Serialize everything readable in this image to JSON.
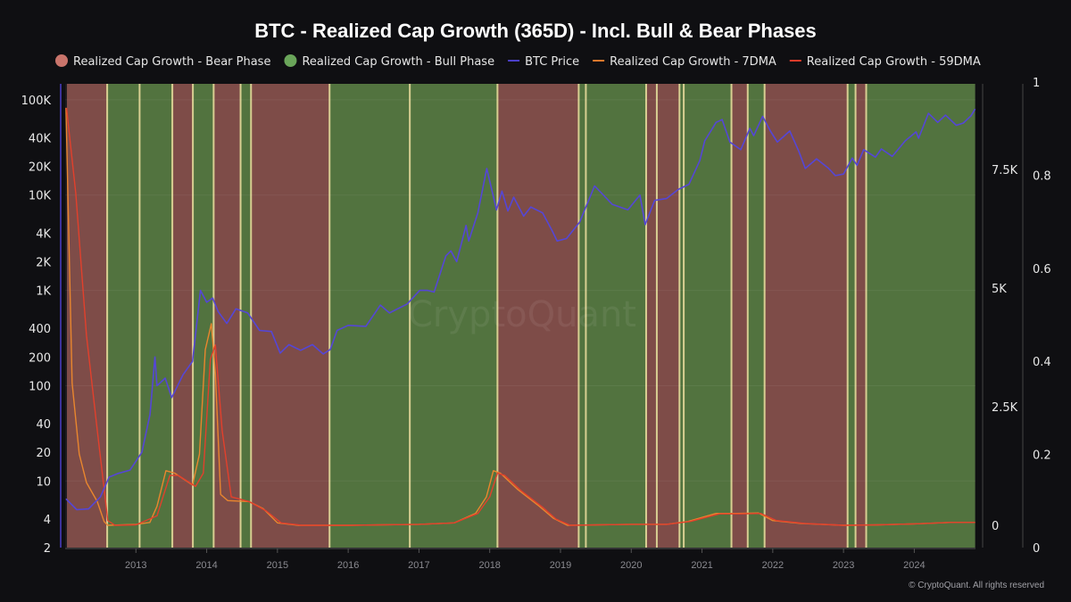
{
  "chart_data": {
    "type": "line",
    "title": "BTC - Realized Cap Growth (365D) - Incl. Bull & Bear Phases",
    "watermark": "CryptoQuant",
    "copyright": "© CryptoQuant. All rights reserved",
    "legend_position": "top",
    "legend": [
      {
        "label": "Realized Cap Growth - Bear Phase",
        "marker": "circle",
        "color": "#c9746b"
      },
      {
        "label": "Realized Cap Growth - Bull Phase",
        "marker": "circle",
        "color": "#6aa55a"
      },
      {
        "label": "BTC Price",
        "marker": "line",
        "color": "#4b3fc8"
      },
      {
        "label": "Realized Cap Growth - 7DMA",
        "marker": "line",
        "color": "#e0782c"
      },
      {
        "label": "Realized Cap Growth - 59DMA",
        "marker": "line",
        "color": "#e23b2a"
      }
    ],
    "colors": {
      "bear": "#7e4c48",
      "bull": "#52733f",
      "separator": "#d8cf92",
      "btc": "#5546d6",
      "dma7": "#e9862e",
      "dma59": "#e2402c",
      "background": "#0f0f12"
    },
    "xlim": [
      "2012-01-01",
      "2024-11-12"
    ],
    "x_ticks": [
      "2013",
      "2014",
      "2015",
      "2016",
      "2017",
      "2018",
      "2019",
      "2020",
      "2021",
      "2022",
      "2023",
      "2024"
    ],
    "grid": true,
    "axes": {
      "price": {
        "scale": "log",
        "ylim": [
          2,
          147000
        ],
        "ticks": [
          {
            "v": 100000,
            "label": "100K"
          },
          {
            "v": 40000,
            "label": "40K"
          },
          {
            "v": 20000,
            "label": "20K"
          },
          {
            "v": 10000,
            "label": "10K"
          },
          {
            "v": 4000,
            "label": "4K"
          },
          {
            "v": 2000,
            "label": "2K"
          },
          {
            "v": 1000,
            "label": "1K"
          },
          {
            "v": 400,
            "label": "400"
          },
          {
            "v": 200,
            "label": "200"
          },
          {
            "v": 100,
            "label": "100"
          },
          {
            "v": 40,
            "label": "40"
          },
          {
            "v": 20,
            "label": "20"
          },
          {
            "v": 10,
            "label": "10"
          },
          {
            "v": 4,
            "label": "4"
          },
          {
            "v": 2,
            "label": "2"
          }
        ]
      },
      "growth": {
        "scale": "linear",
        "ylim": [
          -470,
          9305
        ],
        "ticks": [
          {
            "v": 0,
            "label": "0"
          },
          {
            "v": 2500,
            "label": "2.5K"
          },
          {
            "v": 5000,
            "label": "5K"
          },
          {
            "v": 7500,
            "label": "7.5K"
          }
        ]
      },
      "phase": {
        "scale": "linear",
        "ylim": [
          0,
          1
        ],
        "ticks": [
          {
            "v": 0,
            "label": "0"
          },
          {
            "v": 0.2,
            "label": "0.2"
          },
          {
            "v": 0.4,
            "label": "0.4"
          },
          {
            "v": 0.6,
            "label": "0.6"
          },
          {
            "v": 0.8,
            "label": "0.8"
          },
          {
            "v": 1,
            "label": "1"
          }
        ]
      }
    },
    "phases": [
      {
        "phase": "bear",
        "start": "2012-01-10",
        "end": "2012-08-05"
      },
      {
        "phase": "bull",
        "start": "2012-08-05",
        "end": "2013-01-20"
      },
      {
        "phase": "bull",
        "start": "2013-01-20",
        "end": "2013-07-08"
      },
      {
        "phase": "bear",
        "start": "2013-07-08",
        "end": "2013-10-22"
      },
      {
        "phase": "bull",
        "start": "2013-10-22",
        "end": "2014-02-06"
      },
      {
        "phase": "bear",
        "start": "2014-02-06",
        "end": "2014-06-25"
      },
      {
        "phase": "bull",
        "start": "2014-06-25",
        "end": "2014-08-18"
      },
      {
        "phase": "bear",
        "start": "2014-08-18",
        "end": "2015-09-27"
      },
      {
        "phase": "bull",
        "start": "2015-09-27",
        "end": "2016-11-14"
      },
      {
        "phase": "bull",
        "start": "2016-11-14",
        "end": "2018-02-10"
      },
      {
        "phase": "bear",
        "start": "2018-02-10",
        "end": "2019-04-05"
      },
      {
        "phase": "bull",
        "start": "2019-04-05",
        "end": "2019-05-12"
      },
      {
        "phase": "bull",
        "start": "2019-05-12",
        "end": "2020-03-18"
      },
      {
        "phase": "bear",
        "start": "2020-03-18",
        "end": "2020-05-12"
      },
      {
        "phase": "bear",
        "start": "2020-05-12",
        "end": "2020-09-06"
      },
      {
        "phase": "bull",
        "start": "2020-09-06",
        "end": "2020-09-28"
      },
      {
        "phase": "bull",
        "start": "2020-09-28",
        "end": "2021-06-02"
      },
      {
        "phase": "bear",
        "start": "2021-06-02",
        "end": "2021-08-25"
      },
      {
        "phase": "bull",
        "start": "2021-08-25",
        "end": "2021-11-20"
      },
      {
        "phase": "bear",
        "start": "2021-11-20",
        "end": "2023-01-22"
      },
      {
        "phase": "bull",
        "start": "2023-01-22",
        "end": "2023-03-04"
      },
      {
        "phase": "bear",
        "start": "2023-03-04",
        "end": "2023-04-28"
      },
      {
        "phase": "bull",
        "start": "2023-04-28",
        "end": "2024-11-10"
      }
    ],
    "series": [
      {
        "name": "BTC Price",
        "axis": "price",
        "points": [
          [
            "2012-01-05",
            6.5
          ],
          [
            "2012-03-01",
            5
          ],
          [
            "2012-05-01",
            5.1
          ],
          [
            "2012-07-01",
            6.8
          ],
          [
            "2012-08-15",
            11
          ],
          [
            "2012-10-01",
            12
          ],
          [
            "2012-12-01",
            13
          ],
          [
            "2013-02-01",
            20
          ],
          [
            "2013-03-15",
            50
          ],
          [
            "2013-04-09",
            200
          ],
          [
            "2013-04-20",
            100
          ],
          [
            "2013-06-01",
            120
          ],
          [
            "2013-07-05",
            75
          ],
          [
            "2013-09-01",
            130
          ],
          [
            "2013-10-20",
            180
          ],
          [
            "2013-11-30",
            1000
          ],
          [
            "2014-01-01",
            750
          ],
          [
            "2014-02-01",
            830
          ],
          [
            "2014-03-01",
            600
          ],
          [
            "2014-04-15",
            450
          ],
          [
            "2014-06-01",
            640
          ],
          [
            "2014-08-01",
            580
          ],
          [
            "2014-10-01",
            380
          ],
          [
            "2014-12-01",
            370
          ],
          [
            "2015-01-15",
            220
          ],
          [
            "2015-03-01",
            270
          ],
          [
            "2015-05-01",
            235
          ],
          [
            "2015-07-01",
            270
          ],
          [
            "2015-08-25",
            215
          ],
          [
            "2015-10-01",
            240
          ],
          [
            "2015-11-05",
            380
          ],
          [
            "2016-01-01",
            430
          ],
          [
            "2016-04-01",
            420
          ],
          [
            "2016-06-15",
            700
          ],
          [
            "2016-08-01",
            580
          ],
          [
            "2016-11-01",
            720
          ],
          [
            "2017-01-05",
            1000
          ],
          [
            "2017-02-15",
            1000
          ],
          [
            "2017-03-20",
            960
          ],
          [
            "2017-05-20",
            2300
          ],
          [
            "2017-06-15",
            2600
          ],
          [
            "2017-07-15",
            2000
          ],
          [
            "2017-09-01",
            4800
          ],
          [
            "2017-09-15",
            3300
          ],
          [
            "2017-11-01",
            6500
          ],
          [
            "2017-12-17",
            19000
          ],
          [
            "2018-02-05",
            7000
          ],
          [
            "2018-03-05",
            11000
          ],
          [
            "2018-04-05",
            6800
          ],
          [
            "2018-05-05",
            9500
          ],
          [
            "2018-06-25",
            6000
          ],
          [
            "2018-08-01",
            7500
          ],
          [
            "2018-10-01",
            6500
          ],
          [
            "2018-11-20",
            4200
          ],
          [
            "2018-12-15",
            3300
          ],
          [
            "2019-02-01",
            3500
          ],
          [
            "2019-04-10",
            5200
          ],
          [
            "2019-06-26",
            12500
          ],
          [
            "2019-08-01",
            10500
          ],
          [
            "2019-09-25",
            8000
          ],
          [
            "2019-12-15",
            7000
          ],
          [
            "2020-02-15",
            10000
          ],
          [
            "2020-03-13",
            4900
          ],
          [
            "2020-05-01",
            8800
          ],
          [
            "2020-07-01",
            9200
          ],
          [
            "2020-09-01",
            11500
          ],
          [
            "2020-10-25",
            13000
          ],
          [
            "2020-12-20",
            23000
          ],
          [
            "2021-01-15",
            37000
          ],
          [
            "2021-03-15",
            58000
          ],
          [
            "2021-04-15",
            62000
          ],
          [
            "2021-05-25",
            36000
          ],
          [
            "2021-07-20",
            30000
          ],
          [
            "2021-09-05",
            50000
          ],
          [
            "2021-09-25",
            42000
          ],
          [
            "2021-11-10",
            67000
          ],
          [
            "2021-12-20",
            47000
          ],
          [
            "2022-01-25",
            36000
          ],
          [
            "2022-03-30",
            47000
          ],
          [
            "2022-05-15",
            29000
          ],
          [
            "2022-06-18",
            19000
          ],
          [
            "2022-08-15",
            24000
          ],
          [
            "2022-10-15",
            19200
          ],
          [
            "2022-11-20",
            16000
          ],
          [
            "2023-01-01",
            16600
          ],
          [
            "2023-02-15",
            24500
          ],
          [
            "2023-03-12",
            20500
          ],
          [
            "2023-04-15",
            30000
          ],
          [
            "2023-06-15",
            25000
          ],
          [
            "2023-07-15",
            30500
          ],
          [
            "2023-09-10",
            25500
          ],
          [
            "2023-11-15",
            37000
          ],
          [
            "2024-01-10",
            46000
          ],
          [
            "2024-01-23",
            39500
          ],
          [
            "2024-03-14",
            72000
          ],
          [
            "2024-05-01",
            58000
          ],
          [
            "2024-06-10",
            69000
          ],
          [
            "2024-08-05",
            54000
          ],
          [
            "2024-09-10",
            57000
          ],
          [
            "2024-10-20",
            68000
          ],
          [
            "2024-11-10",
            80000
          ]
        ]
      },
      {
        "name": "Realized Cap Growth - 7DMA",
        "axis": "growth",
        "points": [
          [
            "2012-01-05",
            8800
          ],
          [
            "2012-02-06",
            3000
          ],
          [
            "2012-03-14",
            1500
          ],
          [
            "2012-04-20",
            900
          ],
          [
            "2012-06-15",
            500
          ],
          [
            "2012-07-20",
            80
          ],
          [
            "2012-08-08",
            0
          ],
          [
            "2013-01-01",
            20
          ],
          [
            "2013-03-14",
            60
          ],
          [
            "2013-04-20",
            400
          ],
          [
            "2013-06-05",
            1150
          ],
          [
            "2013-07-20",
            1100
          ],
          [
            "2013-10-20",
            850
          ],
          [
            "2013-11-25",
            1500
          ],
          [
            "2013-12-25",
            3700
          ],
          [
            "2014-01-25",
            4250
          ],
          [
            "2014-02-15",
            3200
          ],
          [
            "2014-03-14",
            650
          ],
          [
            "2014-04-20",
            520
          ],
          [
            "2014-08-08",
            500
          ],
          [
            "2014-10-20",
            350
          ],
          [
            "2015-01-01",
            50
          ],
          [
            "2015-04-20",
            0
          ],
          [
            "2016-01-01",
            0
          ],
          [
            "2017-01-01",
            20
          ],
          [
            "2017-07-02",
            50
          ],
          [
            "2017-10-20",
            250
          ],
          [
            "2017-12-15",
            600
          ],
          [
            "2018-01-20",
            1150
          ],
          [
            "2018-02-25",
            1100
          ],
          [
            "2018-05-27",
            750
          ],
          [
            "2018-09-14",
            400
          ],
          [
            "2018-11-25",
            150
          ],
          [
            "2019-02-06",
            0
          ],
          [
            "2020-01-01",
            20
          ],
          [
            "2020-07-02",
            20
          ],
          [
            "2020-10-20",
            80
          ],
          [
            "2021-03-14",
            250
          ],
          [
            "2021-07-02",
            250
          ],
          [
            "2021-10-20",
            260
          ],
          [
            "2022-01-01",
            100
          ],
          [
            "2022-05-27",
            40
          ],
          [
            "2023-01-01",
            0
          ],
          [
            "2023-07-02",
            10
          ],
          [
            "2024-01-01",
            30
          ],
          [
            "2024-07-02",
            60
          ],
          [
            "2024-11-10",
            60
          ]
        ]
      },
      {
        "name": "Realized Cap Growth - 59DMA",
        "axis": "growth",
        "points": [
          [
            "2012-01-08",
            8800
          ],
          [
            "2012-02-25",
            7000
          ],
          [
            "2012-04-20",
            4000
          ],
          [
            "2012-06-15",
            2000
          ],
          [
            "2012-08-08",
            100
          ],
          [
            "2012-09-14",
            0
          ],
          [
            "2013-01-01",
            10
          ],
          [
            "2013-04-20",
            200
          ],
          [
            "2013-06-25",
            1050
          ],
          [
            "2013-08-08",
            1050
          ],
          [
            "2013-11-05",
            820
          ],
          [
            "2013-12-15",
            1100
          ],
          [
            "2014-01-20",
            3500
          ],
          [
            "2014-02-15",
            3800
          ],
          [
            "2014-03-22",
            2000
          ],
          [
            "2014-05-08",
            600
          ],
          [
            "2014-08-08",
            500
          ],
          [
            "2014-11-05",
            300
          ],
          [
            "2015-01-20",
            50
          ],
          [
            "2015-05-08",
            0
          ],
          [
            "2016-01-01",
            0
          ],
          [
            "2017-01-01",
            20
          ],
          [
            "2017-07-02",
            50
          ],
          [
            "2017-11-01",
            250
          ],
          [
            "2018-01-01",
            600
          ],
          [
            "2018-02-10",
            1100
          ],
          [
            "2018-03-20",
            1050
          ],
          [
            "2018-06-15",
            720
          ],
          [
            "2018-10-01",
            380
          ],
          [
            "2018-12-10",
            130
          ],
          [
            "2019-02-20",
            0
          ],
          [
            "2020-01-01",
            20
          ],
          [
            "2020-07-02",
            20
          ],
          [
            "2020-11-01",
            80
          ],
          [
            "2021-04-01",
            240
          ],
          [
            "2021-07-15",
            240
          ],
          [
            "2021-11-01",
            250
          ],
          [
            "2022-01-20",
            100
          ],
          [
            "2022-06-15",
            40
          ],
          [
            "2023-01-01",
            0
          ],
          [
            "2023-07-02",
            10
          ],
          [
            "2024-01-01",
            30
          ],
          [
            "2024-07-02",
            60
          ],
          [
            "2024-11-10",
            60
          ]
        ]
      }
    ]
  }
}
